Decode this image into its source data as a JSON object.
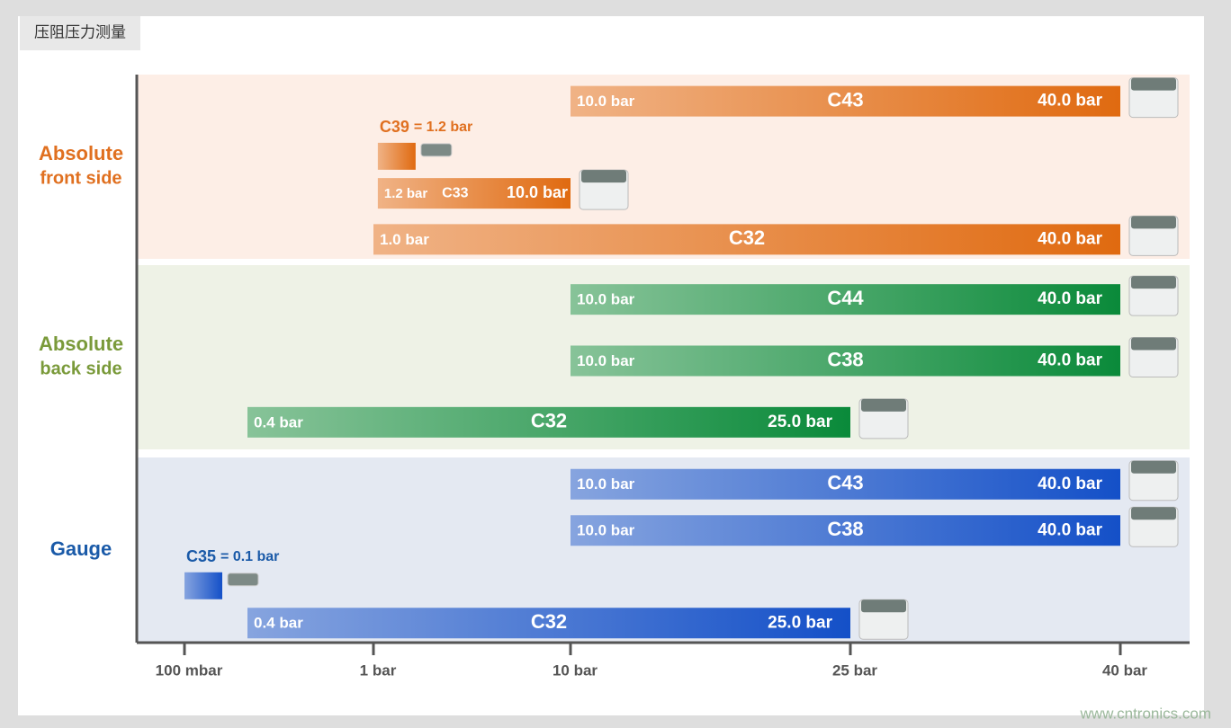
{
  "chart_data": {
    "type": "range-bar",
    "title": "压阻压力测量",
    "xticks": [
      {
        "value": 0.1,
        "label": "100 mbar"
      },
      {
        "value": 1,
        "label": "1 bar"
      },
      {
        "value": 10,
        "label": "10 bar"
      },
      {
        "value": 25,
        "label": "25 bar"
      },
      {
        "value": 40,
        "label": "40 bar"
      }
    ],
    "groups": [
      {
        "label": [
          "Absolute",
          "front side"
        ],
        "label_color": "#e07020",
        "color": "#e06a10",
        "background": "#fdeee6",
        "items": [
          {
            "name": "C43",
            "start": 10,
            "end": 40,
            "start_label": "10.0 bar",
            "end_label": "40.0 bar"
          },
          {
            "name": "C39",
            "value": 1.2,
            "value_label": "= 1.2 bar"
          },
          {
            "name": "C33",
            "start": 1.2,
            "end": 10,
            "start_label": "1.2 bar",
            "end_label": "10.0 bar"
          },
          {
            "name": "C32",
            "start": 1,
            "end": 40,
            "start_label": "1.0 bar",
            "end_label": "40.0 bar"
          }
        ]
      },
      {
        "label": [
          "Absolute",
          "back side"
        ],
        "label_color": "#7a9a3a",
        "color": "#0a8a3a",
        "background": "#eef2e6",
        "items": [
          {
            "name": "C44",
            "start": 10,
            "end": 40,
            "start_label": "10.0 bar",
            "end_label": "40.0 bar"
          },
          {
            "name": "C38",
            "start": 10,
            "end": 40,
            "start_label": "10.0 bar",
            "end_label": "40.0 bar"
          },
          {
            "name": "C32",
            "start": 0.4,
            "end": 25,
            "start_label": "0.4 bar",
            "end_label": "25.0 bar"
          }
        ]
      },
      {
        "label": [
          "Gauge"
        ],
        "label_color": "#1a5aa8",
        "color": "#1450c8",
        "background": "#e4e9f2",
        "items": [
          {
            "name": "C43",
            "start": 10,
            "end": 40,
            "start_label": "10.0 bar",
            "end_label": "40.0 bar"
          },
          {
            "name": "C38",
            "start": 10,
            "end": 40,
            "start_label": "10.0 bar",
            "end_label": "40.0 bar"
          },
          {
            "name": "C35",
            "value": 0.1,
            "value_label": "= 0.1 bar"
          },
          {
            "name": "C32",
            "start": 0.4,
            "end": 25,
            "start_label": "0.4 bar",
            "end_label": "25.0 bar"
          }
        ]
      }
    ]
  },
  "watermark": "www.cntronics.com"
}
